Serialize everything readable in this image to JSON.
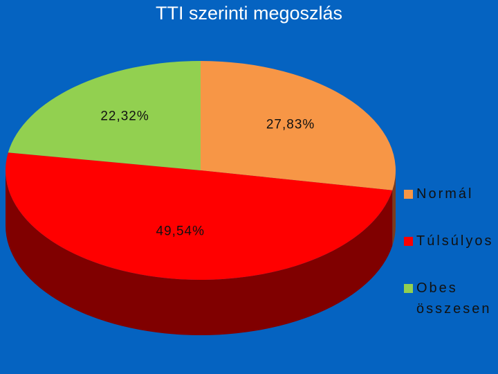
{
  "chart_data": {
    "type": "pie",
    "title": "TTI szerinti megoszlás",
    "categories": [
      "Normál",
      "Túlsúlyos",
      "Obes összesen"
    ],
    "values": [
      27.83,
      49.54,
      22.32
    ],
    "value_labels": [
      "27,83%",
      "49,54%",
      "22,32%"
    ],
    "colors": [
      "#f79646",
      "#ff0000",
      "#92d050"
    ],
    "legend": "right"
  }
}
